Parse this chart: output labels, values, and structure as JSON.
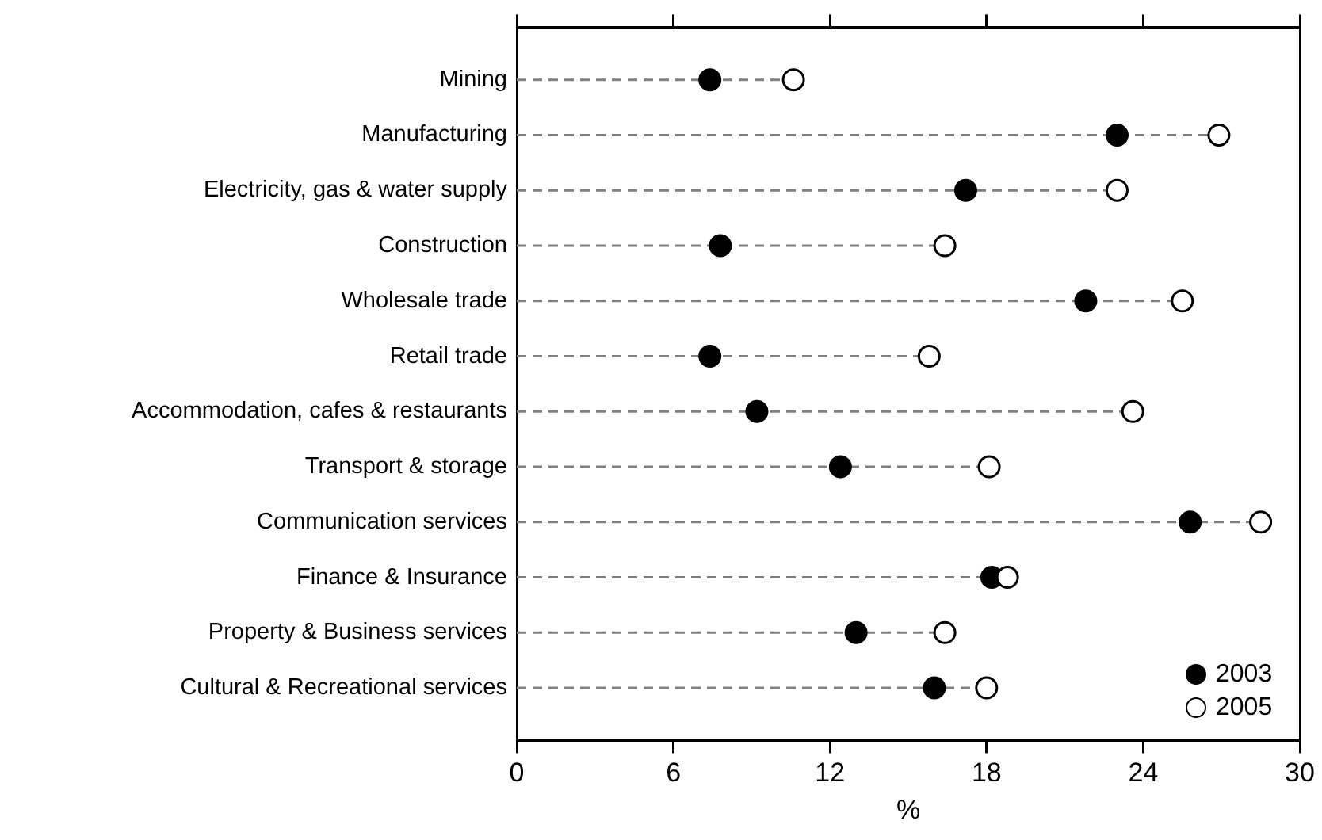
{
  "chart_data": {
    "type": "scatter",
    "orientation": "horizontal",
    "xlabel": "%",
    "categories": [
      "Mining",
      "Manufacturing",
      "Electricity, gas & water supply",
      "Construction",
      "Wholesale trade",
      "Retail trade",
      "Accommodation, cafes & restaurants",
      "Transport & storage",
      "Communication services",
      "Finance & Insurance",
      "Property & Business services",
      "Cultural & Recreational services"
    ],
    "series": [
      {
        "name": "2005",
        "type": "lollipop",
        "line_style": "dashed",
        "color": "#ffffff",
        "values": [
          10.6,
          26.9,
          23.0,
          16.4,
          25.5,
          15.8,
          23.6,
          18.1,
          28.5,
          18.8,
          16.4,
          18.0
        ]
      },
      {
        "name": "2003",
        "type": "scatter",
        "color": "#000000",
        "values": [
          7.4,
          23.0,
          17.2,
          7.8,
          21.8,
          7.4,
          9.2,
          12.4,
          25.8,
          18.2,
          13.0,
          16.0
        ]
      }
    ],
    "xlim": [
      0,
      30
    ],
    "xticks": [
      0,
      6,
      12,
      18,
      24,
      30
    ],
    "grid": false,
    "legend": "bottom right",
    "marker": "circle"
  }
}
